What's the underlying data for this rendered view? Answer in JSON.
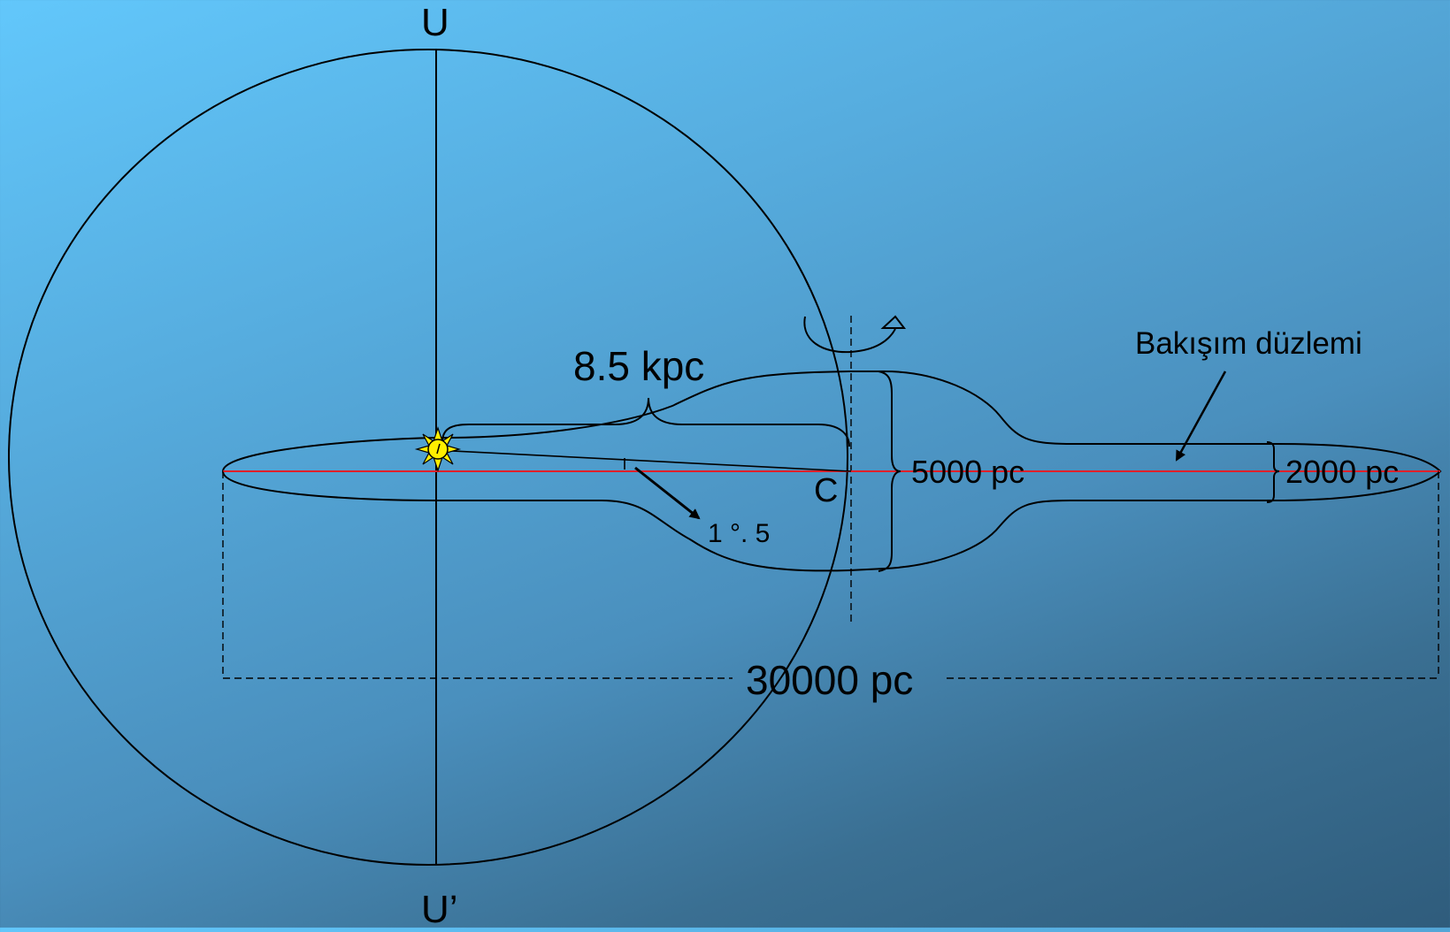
{
  "labels": {
    "top_pole": "U",
    "bottom_pole": "U’",
    "sun_distance": "8.5 kpc",
    "center": "C",
    "angle": "1 °. 5",
    "bulge_thickness": "5000 pc",
    "disk_thickness": "2000 pc",
    "diameter": "30000 pc",
    "plane_label": "Bakışım düzlemi"
  },
  "colors": {
    "background_top": "#62c7fb",
    "background_bottom": "#2f5c7c",
    "galactic_plane_line": "#e0202a",
    "sun_fill": "#ffee00",
    "line_color": "#000000"
  },
  "icons": {
    "sun": "sun-icon",
    "rotation": "rotation-arrow-icon"
  }
}
